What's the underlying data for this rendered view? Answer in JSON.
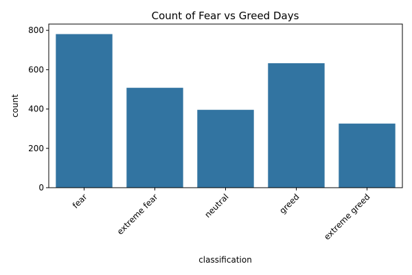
{
  "chart_data": {
    "type": "bar",
    "title": "Count of Fear vs Greed Days",
    "xlabel": "classification",
    "ylabel": "count",
    "categories": [
      "fear",
      "extreme fear",
      "neutral",
      "greed",
      "extreme greed"
    ],
    "values": [
      781,
      508,
      396,
      633,
      326
    ],
    "ylim": [
      0,
      832
    ],
    "yticks": [
      0,
      200,
      400,
      600,
      800
    ],
    "grid": false,
    "bar_color": "#3274a1"
  }
}
